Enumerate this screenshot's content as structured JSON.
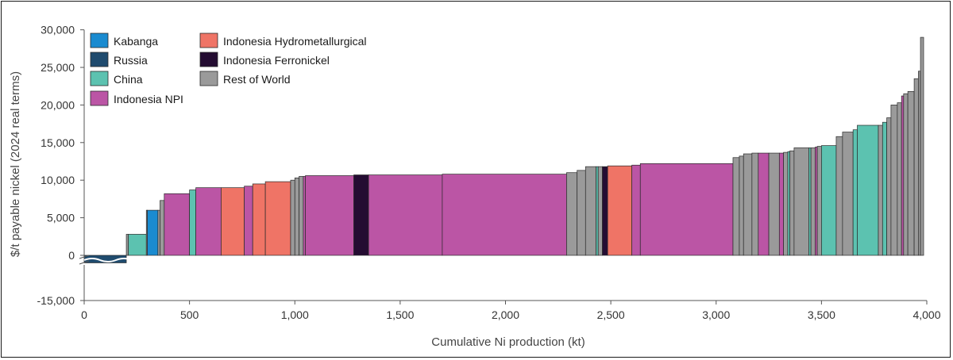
{
  "chart_data": {
    "type": "bar",
    "subtype": "cost-curve (variable-width bars)",
    "title": "",
    "xlabel": "Cumulative Ni production (kt)",
    "ylabel": "$/t payable nickel (2024 real terms)",
    "xlim": [
      0,
      4000
    ],
    "ylim": [
      -15000,
      30000
    ],
    "x_ticks": [
      0,
      500,
      1000,
      1500,
      2000,
      2500,
      3000,
      3500,
      4000
    ],
    "x_tick_labels": [
      "0",
      "500",
      "1,000",
      "1,500",
      "2,000",
      "2,500",
      "3,000",
      "3,500",
      "4,000"
    ],
    "y_ticks": [
      -15000,
      0,
      5000,
      10000,
      15000,
      20000,
      25000,
      30000
    ],
    "y_tick_labels": [
      "-15,000",
      "0",
      "5,000",
      "10,000",
      "15,000",
      "20,000",
      "25,000",
      "30,000"
    ],
    "axis_break": "between 0 and -15,000",
    "grid": false,
    "legend_position": "top-left",
    "categories": [
      {
        "name": "Kabanga",
        "color": "#1a8bd0"
      },
      {
        "name": "Russia",
        "color": "#1f4b6e"
      },
      {
        "name": "China",
        "color": "#5cc2b0"
      },
      {
        "name": "Indonesia NPI",
        "color": "#bb55a5"
      },
      {
        "name": "Indonesia Hydrometallurgical",
        "color": "#ef7466"
      },
      {
        "name": "Indonesia Ferronickel",
        "color": "#240c32"
      },
      {
        "name": "Rest of World",
        "color": "#9a9a9a"
      }
    ],
    "series": [
      {
        "name": "Russia",
        "x": [
          0,
          200
        ],
        "value": -1000
      },
      {
        "name": "Rest of World",
        "x": [
          200,
          210
        ],
        "value": 2800
      },
      {
        "name": "China",
        "x": [
          210,
          295
        ],
        "value": 2800
      },
      {
        "name": "Rest of World",
        "x": [
          295,
          300
        ],
        "value": 6000
      },
      {
        "name": "Kabanga",
        "x": [
          300,
          350
        ],
        "value": 6000
      },
      {
        "name": "Rest of World",
        "x": [
          350,
          360
        ],
        "value": 6000
      },
      {
        "name": "Rest of World",
        "x": [
          360,
          380
        ],
        "value": 7300
      },
      {
        "name": "Indonesia NPI",
        "x": [
          380,
          500
        ],
        "value": 8200
      },
      {
        "name": "China",
        "x": [
          500,
          530
        ],
        "value": 8700
      },
      {
        "name": "Indonesia NPI",
        "x": [
          530,
          650
        ],
        "value": 9000
      },
      {
        "name": "Indonesia Hydrometallurgical",
        "x": [
          650,
          760
        ],
        "value": 9000
      },
      {
        "name": "Indonesia NPI",
        "x": [
          760,
          800
        ],
        "value": 9200
      },
      {
        "name": "Indonesia Hydrometallurgical",
        "x": [
          800,
          860
        ],
        "value": 9500
      },
      {
        "name": "Indonesia Hydrometallurgical",
        "x": [
          860,
          980
        ],
        "value": 9800
      },
      {
        "name": "Rest of World",
        "x": [
          980,
          1000
        ],
        "value": 10000
      },
      {
        "name": "Rest of World",
        "x": [
          1000,
          1020
        ],
        "value": 10300
      },
      {
        "name": "Rest of World",
        "x": [
          1020,
          1040
        ],
        "value": 10500
      },
      {
        "name": "Indonesia NPI",
        "x": [
          1040,
          1050
        ],
        "value": 10500
      },
      {
        "name": "Indonesia NPI",
        "x": [
          1050,
          1280
        ],
        "value": 10600
      },
      {
        "name": "Indonesia Ferronickel",
        "x": [
          1280,
          1350
        ],
        "value": 10700
      },
      {
        "name": "Indonesia NPI",
        "x": [
          1350,
          1700
        ],
        "value": 10700
      },
      {
        "name": "Indonesia NPI",
        "x": [
          1700,
          2290
        ],
        "value": 10800
      },
      {
        "name": "Rest of World",
        "x": [
          2290,
          2340
        ],
        "value": 11000
      },
      {
        "name": "Rest of World",
        "x": [
          2340,
          2380
        ],
        "value": 11300
      },
      {
        "name": "Rest of World",
        "x": [
          2380,
          2430
        ],
        "value": 11800
      },
      {
        "name": "China",
        "x": [
          2430,
          2440
        ],
        "value": 11800
      },
      {
        "name": "Rest of World",
        "x": [
          2440,
          2460
        ],
        "value": 11800
      },
      {
        "name": "Indonesia Ferronickel",
        "x": [
          2460,
          2485
        ],
        "value": 11800
      },
      {
        "name": "Indonesia Hydrometallurgical",
        "x": [
          2485,
          2600
        ],
        "value": 11900
      },
      {
        "name": "Indonesia NPI",
        "x": [
          2600,
          2640
        ],
        "value": 12000
      },
      {
        "name": "Indonesia NPI",
        "x": [
          2640,
          3080
        ],
        "value": 12200
      },
      {
        "name": "Rest of World",
        "x": [
          3080,
          3110
        ],
        "value": 13000
      },
      {
        "name": "Rest of World",
        "x": [
          3110,
          3130
        ],
        "value": 13200
      },
      {
        "name": "Rest of World",
        "x": [
          3130,
          3170
        ],
        "value": 13500
      },
      {
        "name": "Rest of World",
        "x": [
          3170,
          3200
        ],
        "value": 13600
      },
      {
        "name": "Indonesia NPI",
        "x": [
          3200,
          3250
        ],
        "value": 13600
      },
      {
        "name": "Rest of World",
        "x": [
          3250,
          3300
        ],
        "value": 13600
      },
      {
        "name": "Indonesia NPI",
        "x": [
          3300,
          3320
        ],
        "value": 13600
      },
      {
        "name": "Rest of World",
        "x": [
          3320,
          3340
        ],
        "value": 13700
      },
      {
        "name": "China",
        "x": [
          3340,
          3350
        ],
        "value": 13800
      },
      {
        "name": "Rest of World",
        "x": [
          3350,
          3370
        ],
        "value": 13900
      },
      {
        "name": "Rest of World",
        "x": [
          3370,
          3440
        ],
        "value": 14300
      },
      {
        "name": "China",
        "x": [
          3440,
          3450
        ],
        "value": 14300
      },
      {
        "name": "Rest of World",
        "x": [
          3450,
          3470
        ],
        "value": 14300
      },
      {
        "name": "Indonesia NPI",
        "x": [
          3470,
          3480
        ],
        "value": 14400
      },
      {
        "name": "Rest of World",
        "x": [
          3480,
          3500
        ],
        "value": 14500
      },
      {
        "name": "China",
        "x": [
          3500,
          3570
        ],
        "value": 14600
      },
      {
        "name": "Rest of World",
        "x": [
          3570,
          3600
        ],
        "value": 15800
      },
      {
        "name": "Rest of World",
        "x": [
          3600,
          3650
        ],
        "value": 16400
      },
      {
        "name": "China",
        "x": [
          3650,
          3670
        ],
        "value": 16700
      },
      {
        "name": "China",
        "x": [
          3670,
          3770
        ],
        "value": 17300
      },
      {
        "name": "Rest of World",
        "x": [
          3770,
          3790
        ],
        "value": 17300
      },
      {
        "name": "China",
        "x": [
          3790,
          3810
        ],
        "value": 17700
      },
      {
        "name": "Rest of World",
        "x": [
          3810,
          3830
        ],
        "value": 18300
      },
      {
        "name": "Rest of World",
        "x": [
          3830,
          3860
        ],
        "value": 20000
      },
      {
        "name": "Rest of World",
        "x": [
          3860,
          3880
        ],
        "value": 20300
      },
      {
        "name": "Indonesia NPI",
        "x": [
          3880,
          3890
        ],
        "value": 21200
      },
      {
        "name": "Rest of World",
        "x": [
          3890,
          3910
        ],
        "value": 21500
      },
      {
        "name": "Rest of World",
        "x": [
          3910,
          3940
        ],
        "value": 21800
      },
      {
        "name": "Rest of World",
        "x": [
          3940,
          3960
        ],
        "value": 23500
      },
      {
        "name": "Rest of World",
        "x": [
          3960,
          3970
        ],
        "value": 24500
      },
      {
        "name": "Rest of World",
        "x": [
          3970,
          3985
        ],
        "value": 29000
      }
    ]
  }
}
